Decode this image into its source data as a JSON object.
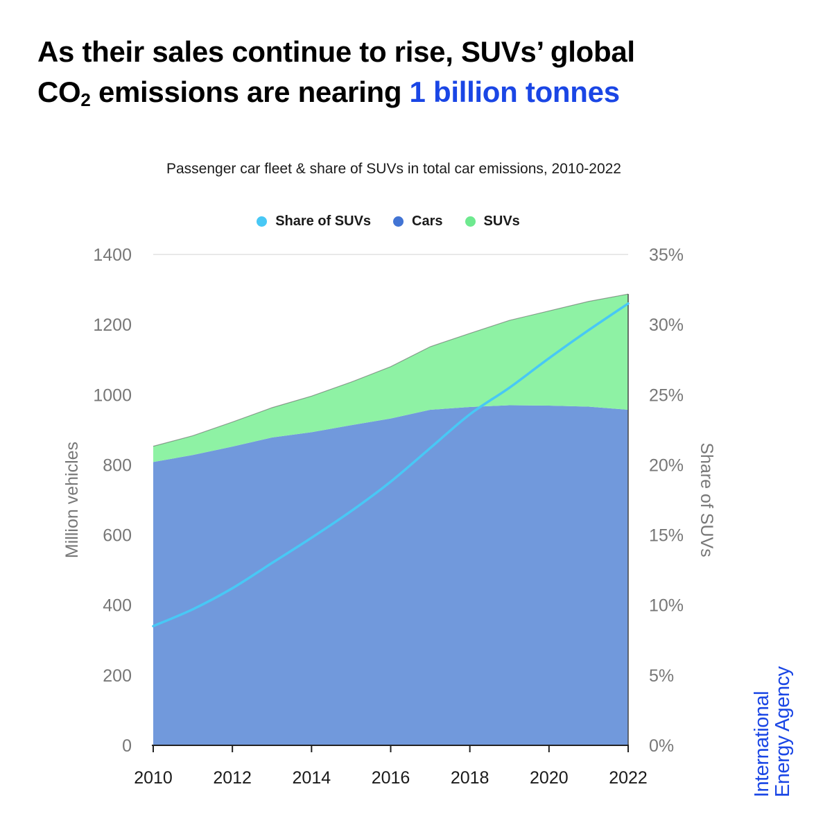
{
  "headline": {
    "line1": "As their sales continue to rise, SUVs’ global",
    "line2_prefix": "CO",
    "line2_subscript": "2",
    "line2_mid": " emissions are nearing ",
    "line2_highlight": "1 billion tonnes"
  },
  "brand": {
    "line1": "International",
    "line2": "Energy Agency"
  },
  "chart_data": {
    "type": "area",
    "subtitle": "Passenger car fleet & share of SUVs in total car emissions, 2010-2022",
    "x": [
      2010,
      2011,
      2012,
      2013,
      2014,
      2015,
      2016,
      2017,
      2018,
      2019,
      2020,
      2021,
      2022
    ],
    "x_tick_labels": [
      "2010",
      "2012",
      "2014",
      "2016",
      "2018",
      "2020",
      "2022"
    ],
    "ylabel_left": "Million vehicles",
    "ylabel_right": "Share of SUVs",
    "ylim_left": [
      0,
      1400
    ],
    "ylim_right": [
      0,
      35
    ],
    "y_tick_labels_left": [
      "0",
      "200",
      "400",
      "600",
      "800",
      "1000",
      "1200",
      "1400"
    ],
    "y_tick_labels_right": [
      "0%",
      "5%",
      "10%",
      "15%",
      "20%",
      "25%",
      "30%",
      "35%"
    ],
    "grid": "top line only",
    "legend_position": "top-center",
    "stacked": true,
    "series": [
      {
        "name": "Share of SUVs",
        "kind": "line",
        "axis": "right",
        "color": "#48c8f5",
        "values": [
          8.5,
          9.7,
          11.2,
          13.0,
          14.8,
          16.7,
          18.8,
          21.2,
          23.6,
          25.5,
          27.6,
          29.6,
          31.5
        ]
      },
      {
        "name": "Cars",
        "kind": "area",
        "axis": "left",
        "color": "#7199dc",
        "legend_color": "#4274d4",
        "values": [
          808,
          828,
          852,
          878,
          893,
          913,
          932,
          957,
          965,
          970,
          969,
          966,
          957
        ]
      },
      {
        "name": "SUVs",
        "kind": "area",
        "axis": "left",
        "color": "#8ef2a4",
        "legend_color": "#6ee98f",
        "values": [
          45,
          55,
          70,
          85,
          103,
          123,
          148,
          180,
          210,
          242,
          270,
          300,
          330
        ]
      }
    ]
  }
}
